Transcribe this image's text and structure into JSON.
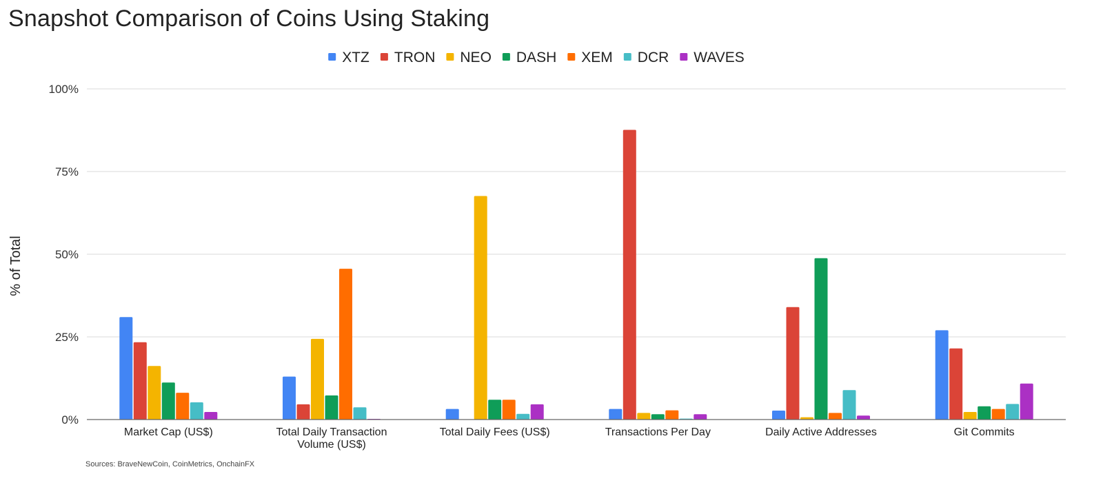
{
  "chart_data": {
    "type": "bar",
    "title": "Snapshot Comparison of Coins Using Staking",
    "ylabel": "% of Total",
    "xlabel": "",
    "ylim": [
      0,
      100
    ],
    "yticks": [
      0,
      25,
      50,
      75,
      100
    ],
    "ytick_labels": [
      "0%",
      "25%",
      "50%",
      "75%",
      "100%"
    ],
    "legend_position": "top-center",
    "categories": [
      [
        "Market Cap (US$)"
      ],
      [
        "Total Daily Transaction",
        "Volume (US$)"
      ],
      [
        "Total Daily Fees (US$)"
      ],
      [
        "Transactions Per Day"
      ],
      [
        "Daily Active Addresses"
      ],
      [
        "Git Commits"
      ]
    ],
    "series": [
      {
        "name": "XTZ",
        "color": "#4285f4",
        "values": [
          31.0,
          13.0,
          3.2,
          3.2,
          2.7,
          27.0
        ]
      },
      {
        "name": "TRON",
        "color": "#db4437",
        "values": [
          23.4,
          4.6,
          0.0,
          87.6,
          34.0,
          21.5
        ]
      },
      {
        "name": "NEO",
        "color": "#f4b400",
        "values": [
          16.2,
          24.4,
          67.6,
          2.0,
          0.7,
          2.3
        ]
      },
      {
        "name": "DASH",
        "color": "#0f9d58",
        "values": [
          11.2,
          7.3,
          6.0,
          1.6,
          48.8,
          4.0
        ]
      },
      {
        "name": "XEM",
        "color": "#ff6d00",
        "values": [
          8.1,
          45.6,
          6.0,
          2.8,
          2.0,
          3.2
        ]
      },
      {
        "name": "DCR",
        "color": "#46bdc6",
        "values": [
          5.2,
          3.7,
          1.7,
          0.3,
          8.9,
          4.7
        ]
      },
      {
        "name": "WAVES",
        "color": "#ab30c4",
        "values": [
          2.3,
          0.2,
          4.6,
          1.6,
          1.2,
          10.9
        ]
      }
    ],
    "source": "Sources: BraveNewCoin, CoinMetrics, OnchainFX"
  }
}
